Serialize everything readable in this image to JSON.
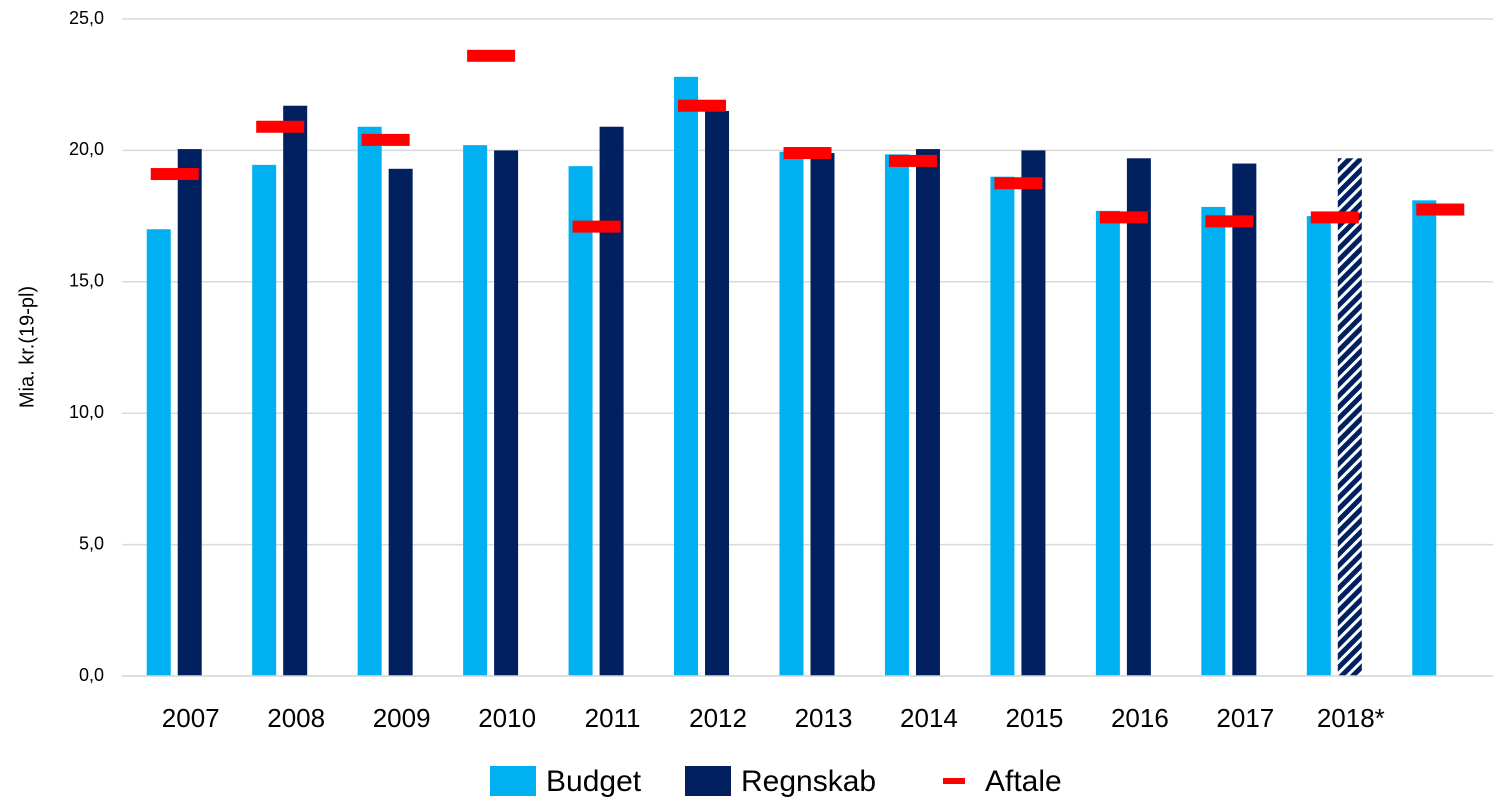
{
  "chart_data": {
    "type": "bar",
    "y_label": "Mia. kr.(19-pl)",
    "categories": [
      "2007",
      "2008",
      "2009",
      "2010",
      "2011",
      "2012",
      "2013",
      "2014",
      "2015",
      "2016",
      "2017",
      "2018*",
      null
    ],
    "series": [
      {
        "name": "Budget",
        "color": "#00b0f0",
        "values": [
          17.0,
          19.45,
          20.9,
          20.2,
          19.4,
          22.8,
          19.95,
          19.85,
          19.0,
          17.7,
          17.85,
          17.5,
          18.1
        ]
      },
      {
        "name": "Regnskab",
        "color": "#002060",
        "values": [
          20.05,
          21.7,
          19.3,
          20.0,
          20.9,
          21.5,
          19.9,
          20.05,
          20.0,
          19.7,
          19.5,
          19.7,
          null
        ],
        "hatched": [
          false,
          false,
          false,
          false,
          false,
          false,
          false,
          false,
          false,
          false,
          false,
          true,
          false
        ]
      },
      {
        "name": "Aftale",
        "color": "#ff0000",
        "marker": "dash",
        "values": [
          19.1,
          20.9,
          20.4,
          23.6,
          17.1,
          21.7,
          19.9,
          19.6,
          18.75,
          17.45,
          17.3,
          17.45,
          17.75
        ]
      }
    ],
    "ylim": [
      0,
      25
    ],
    "yticks": [
      {
        "value": 0,
        "label": "0,0"
      },
      {
        "value": 5,
        "label": "5,0"
      },
      {
        "value": 10,
        "label": "10,0"
      },
      {
        "value": 15,
        "label": "15,0"
      },
      {
        "value": 20,
        "label": "20,0"
      },
      {
        "value": 25,
        "label": "25,0"
      }
    ],
    "grid": true,
    "legend": "bottom"
  }
}
